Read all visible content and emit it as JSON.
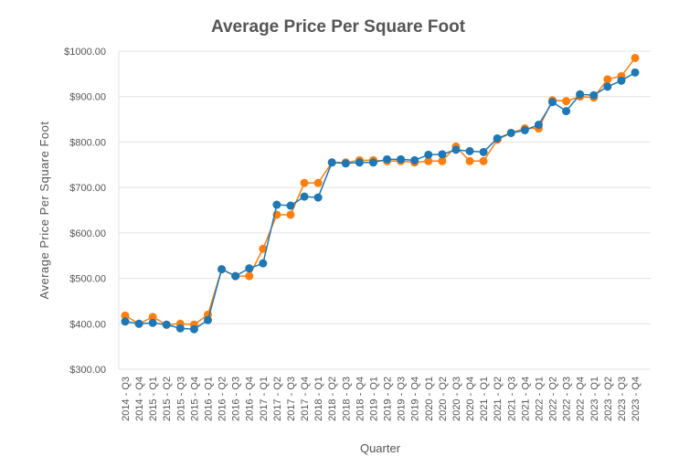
{
  "chart_data": {
    "type": "line",
    "title": "Average Price Per Square Foot",
    "xlabel": "Quarter",
    "ylabel": "Average Price Per Square Foot",
    "ylim": [
      300,
      1000
    ],
    "yticks": [
      "$300.00",
      "$400.00",
      "$500.00",
      "$600.00",
      "$700.00",
      "$800.00",
      "$900.00",
      "$1000.00"
    ],
    "grid": true,
    "legend": "none",
    "categories": [
      "2014 - Q3",
      "2014 - Q4",
      "2015 - Q1",
      "2015 - Q2",
      "2015 - Q3",
      "2015 - Q4",
      "2016 - Q1",
      "2016 - Q2",
      "2016 - Q3",
      "2016 - Q4",
      "2017 - Q1",
      "2017 - Q2",
      "2017 - Q3",
      "2017 - Q4",
      "2018 - Q1",
      "2018 - Q2",
      "2018 - Q3",
      "2018 - Q4",
      "2019 - Q1",
      "2019 - Q2",
      "2019 - Q3",
      "2019 - Q4",
      "2020 - Q1",
      "2020 - Q2",
      "2020 - Q3",
      "2020 - Q4",
      "2021 - Q1",
      "2021 - Q2",
      "2021 - Q3",
      "2021 - Q4",
      "2022 - Q1",
      "2022 - Q2",
      "2022 - Q3",
      "2022 - Q4",
      "2023 - Q1",
      "2023 - Q2",
      "2023 - Q3",
      "2023 - Q4"
    ],
    "series": [
      {
        "color": "#ff7f0e",
        "values": [
          418,
          400,
          415,
          398,
          400,
          398,
          420,
          520,
          505,
          505,
          565,
          640,
          640,
          710,
          710,
          755,
          755,
          760,
          760,
          758,
          758,
          755,
          758,
          758,
          790,
          758,
          758,
          805,
          820,
          830,
          830,
          892,
          890,
          900,
          898,
          938,
          945,
          985
        ]
      },
      {
        "color": "#1f77b4",
        "values": [
          405,
          400,
          402,
          398,
          390,
          388,
          408,
          520,
          505,
          522,
          533,
          662,
          660,
          680,
          678,
          755,
          753,
          755,
          755,
          762,
          762,
          760,
          772,
          773,
          783,
          780,
          778,
          808,
          820,
          826,
          838,
          888,
          868,
          905,
          903,
          922,
          935,
          953
        ]
      }
    ]
  }
}
